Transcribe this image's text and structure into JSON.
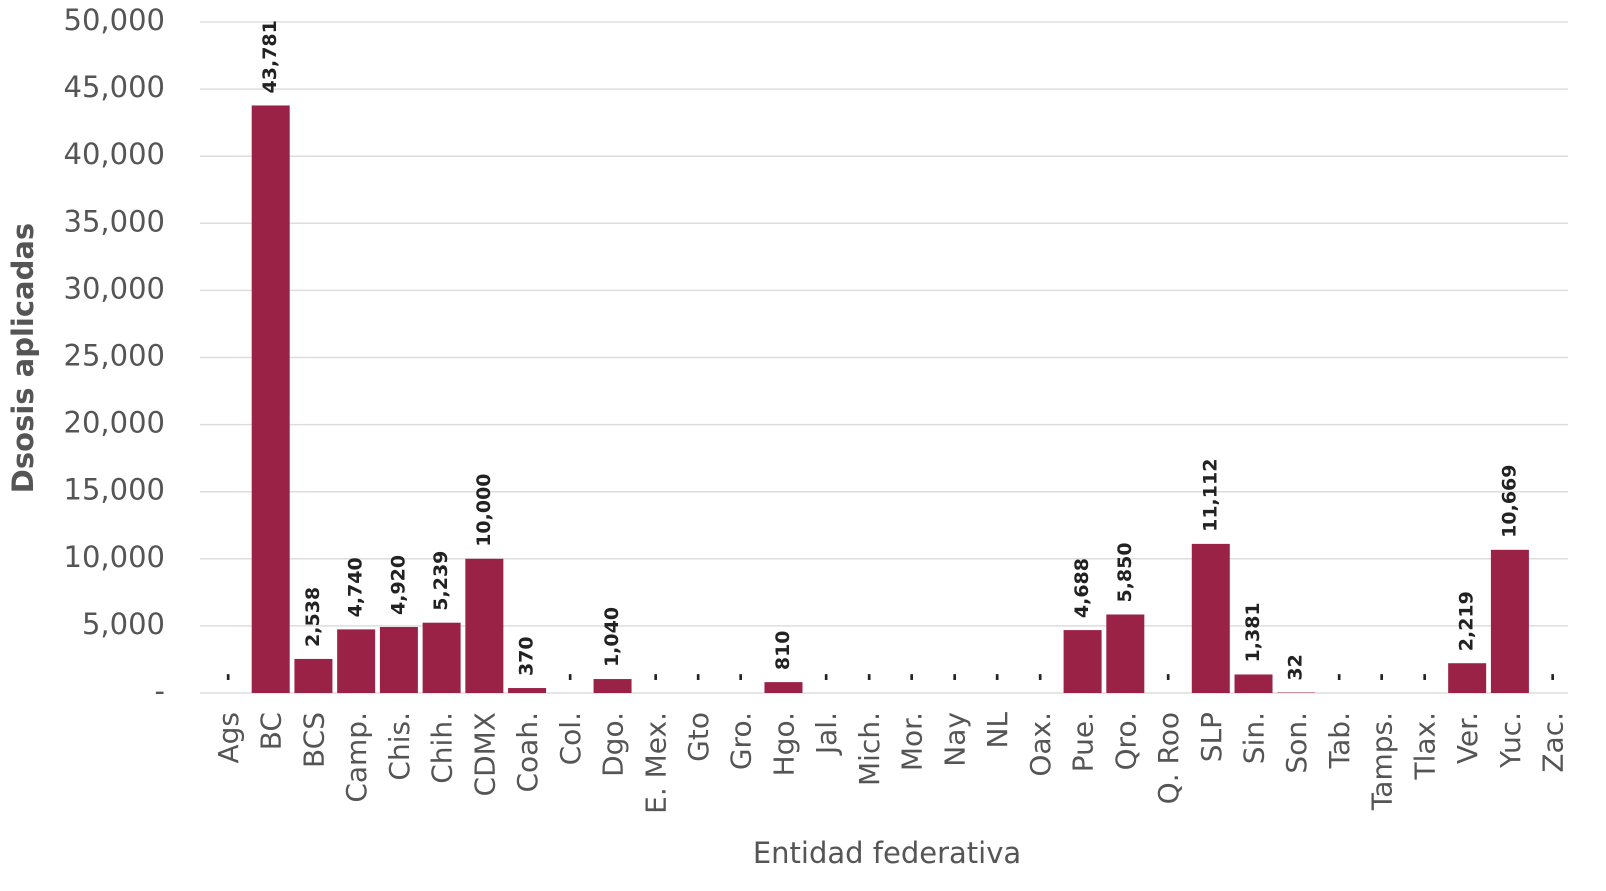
{
  "chart_data": {
    "type": "bar",
    "x_label": "Entidad federativa",
    "y_label": "Dsosis aplicadas",
    "categories": [
      "Ags",
      "BC",
      "BCS",
      "Camp.",
      "Chis.",
      "Chih.",
      "CDMX",
      "Coah.",
      "Col.",
      "Dgo.",
      "E. Mex.",
      "Gto",
      "Gro.",
      "Hgo.",
      "Jal.",
      "Mich.",
      "Mor.",
      "Nay",
      "NL",
      "Oax.",
      "Pue.",
      "Qro.",
      "Q. Roo",
      "SLP",
      "Sin.",
      "Son.",
      "Tab.",
      "Tamps.",
      "Tlax.",
      "Ver.",
      "Yuc.",
      "Zac."
    ],
    "values": [
      0,
      43781,
      2538,
      4740,
      4920,
      5239,
      10000,
      370,
      0,
      1040,
      0,
      0,
      0,
      810,
      0,
      0,
      0,
      0,
      0,
      0,
      4688,
      5850,
      0,
      11112,
      1381,
      32,
      0,
      0,
      0,
      2219,
      10669,
      0
    ],
    "value_labels": [
      "-",
      "43,781",
      "2,538",
      "4,740",
      "4,920",
      "5,239",
      "10,000",
      "370",
      "-",
      "1,040",
      "-",
      "-",
      "-",
      "810",
      "-",
      "-",
      "-",
      "-",
      "-",
      "-",
      "4,688",
      "5,850",
      "-",
      "11,112",
      "1,381",
      "32",
      "-",
      "-",
      "-",
      "2,219",
      "10,669",
      "-"
    ],
    "color": "#9b2247",
    "ylim": [
      0,
      50000
    ],
    "yticks": [
      {
        "value": 0,
        "label": "-"
      },
      {
        "value": 5000,
        "label": "5,000"
      },
      {
        "value": 10000,
        "label": "10,000"
      },
      {
        "value": 15000,
        "label": "15,000"
      },
      {
        "value": 20000,
        "label": "20,000"
      },
      {
        "value": 25000,
        "label": "25,000"
      },
      {
        "value": 30000,
        "label": "30,000"
      },
      {
        "value": 35000,
        "label": "35,000"
      },
      {
        "value": 40000,
        "label": "40,000"
      },
      {
        "value": 45000,
        "label": "45,000"
      },
      {
        "value": 50000,
        "label": "50,000"
      }
    ],
    "grid": true
  }
}
